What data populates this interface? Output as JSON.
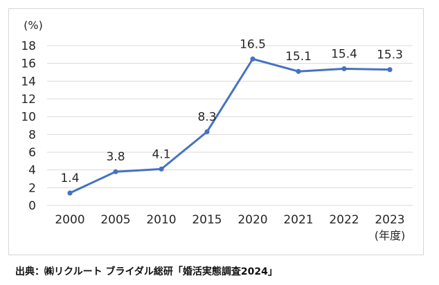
{
  "chart_data": {
    "type": "line",
    "categories": [
      "2000",
      "2005",
      "2010",
      "2015",
      "2020",
      "2021",
      "2022",
      "2023"
    ],
    "series": [
      {
        "values": [
          1.4,
          3.8,
          4.1,
          8.3,
          16.5,
          15.1,
          15.4,
          15.3
        ]
      }
    ],
    "data_labels": [
      "1.4",
      "3.8",
      "4.1",
      "8.3",
      "16.5",
      "15.1",
      "15.4",
      "15.3"
    ],
    "y_unit_label": "(%)",
    "x_unit_label": "(年度)",
    "y_ticks": [
      "0",
      "2",
      "4",
      "6",
      "8",
      "10",
      "12",
      "14",
      "16",
      "18"
    ],
    "ylim": [
      0,
      18
    ],
    "grid": true,
    "line_color": "#4472c4",
    "grid_color": "#d9d9d9"
  },
  "source_text": "出典：㈱リクルート ブライダル総研「婚活実態調査2024」"
}
